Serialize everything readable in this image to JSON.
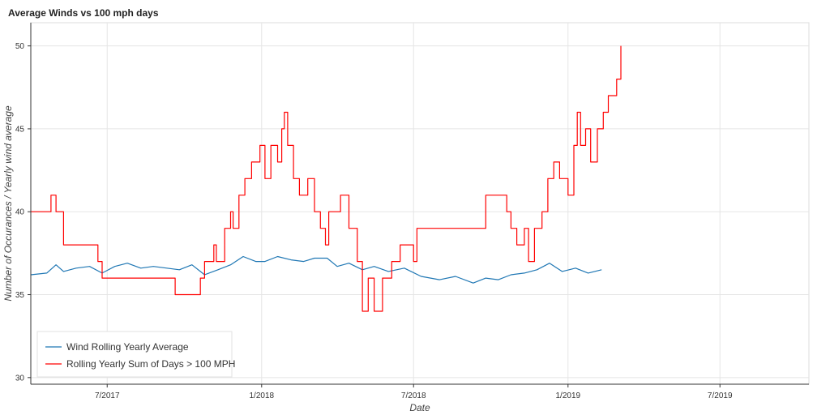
{
  "chart_data": {
    "type": "line",
    "title": "Average Winds vs 100 mph days",
    "xlabel": "Date",
    "ylabel": "Number of Occurances / Yearly wind average",
    "ylim": [
      29.6,
      51.4
    ],
    "xlim": [
      "2017-04-01",
      "2019-10-15"
    ],
    "x_ticks": [
      "2017-07-01",
      "2018-01-01",
      "2018-07-01",
      "2019-01-01",
      "2019-07-01"
    ],
    "x_tick_labels": [
      "7/2017",
      "1/2018",
      "7/2018",
      "1/2019",
      "7/2019"
    ],
    "y_ticks": [
      30,
      35,
      40,
      45,
      50
    ],
    "y_tick_labels": [
      "30",
      "35",
      "40",
      "45",
      "50"
    ],
    "grid": true,
    "legend_position": "bottom-left",
    "series": [
      {
        "name": "Wind Rolling Yearly Average",
        "color": "#1f77b4",
        "style": "line",
        "points": [
          [
            "2017-04-01",
            36.2
          ],
          [
            "2017-04-20",
            36.3
          ],
          [
            "2017-05-01",
            36.8
          ],
          [
            "2017-05-10",
            36.4
          ],
          [
            "2017-05-25",
            36.6
          ],
          [
            "2017-06-10",
            36.7
          ],
          [
            "2017-06-25",
            36.3
          ],
          [
            "2017-07-10",
            36.7
          ],
          [
            "2017-07-25",
            36.9
          ],
          [
            "2017-08-10",
            36.6
          ],
          [
            "2017-08-25",
            36.7
          ],
          [
            "2017-09-10",
            36.6
          ],
          [
            "2017-09-25",
            36.5
          ],
          [
            "2017-10-10",
            36.8
          ],
          [
            "2017-10-25",
            36.2
          ],
          [
            "2017-11-10",
            36.5
          ],
          [
            "2017-11-25",
            36.8
          ],
          [
            "2017-12-10",
            37.3
          ],
          [
            "2017-12-25",
            37.0
          ],
          [
            "2018-01-05",
            37.0
          ],
          [
            "2018-01-20",
            37.3
          ],
          [
            "2018-02-05",
            37.1
          ],
          [
            "2018-02-20",
            37.0
          ],
          [
            "2018-03-05",
            37.2
          ],
          [
            "2018-03-20",
            37.2
          ],
          [
            "2018-04-01",
            36.7
          ],
          [
            "2018-04-15",
            36.9
          ],
          [
            "2018-05-01",
            36.5
          ],
          [
            "2018-05-15",
            36.7
          ],
          [
            "2018-06-01",
            36.4
          ],
          [
            "2018-06-20",
            36.6
          ],
          [
            "2018-07-10",
            36.1
          ],
          [
            "2018-08-01",
            35.9
          ],
          [
            "2018-08-20",
            36.1
          ],
          [
            "2018-09-10",
            35.7
          ],
          [
            "2018-09-25",
            36.0
          ],
          [
            "2018-10-10",
            35.9
          ],
          [
            "2018-10-25",
            36.2
          ],
          [
            "2018-11-10",
            36.3
          ],
          [
            "2018-11-25",
            36.5
          ],
          [
            "2018-12-10",
            36.9
          ],
          [
            "2018-12-25",
            36.4
          ],
          [
            "2019-01-10",
            36.6
          ],
          [
            "2019-01-25",
            36.3
          ],
          [
            "2019-02-10",
            36.5
          ]
        ]
      },
      {
        "name": "Rolling Yearly Sum of Days > 100 MPH",
        "color": "#ff0000",
        "style": "step",
        "points": [
          [
            "2017-04-01",
            40
          ],
          [
            "2017-04-25",
            41
          ],
          [
            "2017-05-01",
            40
          ],
          [
            "2017-05-10",
            38
          ],
          [
            "2017-06-20",
            37
          ],
          [
            "2017-06-25",
            36
          ],
          [
            "2017-09-20",
            35
          ],
          [
            "2017-10-20",
            36
          ],
          [
            "2017-10-25",
            37
          ],
          [
            "2017-11-05",
            38
          ],
          [
            "2017-11-08",
            37
          ],
          [
            "2017-11-18",
            39
          ],
          [
            "2017-11-25",
            40
          ],
          [
            "2017-11-28",
            39
          ],
          [
            "2017-12-05",
            41
          ],
          [
            "2017-12-12",
            42
          ],
          [
            "2017-12-20",
            43
          ],
          [
            "2017-12-30",
            44
          ],
          [
            "2018-01-05",
            42
          ],
          [
            "2018-01-12",
            44
          ],
          [
            "2018-01-20",
            43
          ],
          [
            "2018-01-25",
            45
          ],
          [
            "2018-01-28",
            46
          ],
          [
            "2018-02-01",
            44
          ],
          [
            "2018-02-08",
            42
          ],
          [
            "2018-02-15",
            41
          ],
          [
            "2018-02-25",
            42
          ],
          [
            "2018-03-05",
            40
          ],
          [
            "2018-03-12",
            39
          ],
          [
            "2018-03-18",
            38
          ],
          [
            "2018-03-22",
            40
          ],
          [
            "2018-04-05",
            41
          ],
          [
            "2018-04-15",
            39
          ],
          [
            "2018-04-25",
            37
          ],
          [
            "2018-05-01",
            34
          ],
          [
            "2018-05-08",
            36
          ],
          [
            "2018-05-15",
            34
          ],
          [
            "2018-05-25",
            36
          ],
          [
            "2018-06-05",
            37
          ],
          [
            "2018-06-15",
            38
          ],
          [
            "2018-07-01",
            37
          ],
          [
            "2018-07-05",
            39
          ],
          [
            "2018-09-25",
            41
          ],
          [
            "2018-10-20",
            40
          ],
          [
            "2018-10-25",
            39
          ],
          [
            "2018-11-01",
            38
          ],
          [
            "2018-11-10",
            39
          ],
          [
            "2018-11-15",
            37
          ],
          [
            "2018-11-22",
            39
          ],
          [
            "2018-12-01",
            40
          ],
          [
            "2018-12-08",
            42
          ],
          [
            "2018-12-15",
            43
          ],
          [
            "2018-12-22",
            42
          ],
          [
            "2019-01-01",
            41
          ],
          [
            "2019-01-08",
            44
          ],
          [
            "2019-01-12",
            46
          ],
          [
            "2019-01-16",
            44
          ],
          [
            "2019-01-22",
            45
          ],
          [
            "2019-01-28",
            43
          ],
          [
            "2019-02-05",
            45
          ],
          [
            "2019-02-12",
            46
          ],
          [
            "2019-02-18",
            47
          ],
          [
            "2019-02-28",
            48
          ],
          [
            "2019-03-05",
            50
          ]
        ]
      }
    ]
  }
}
